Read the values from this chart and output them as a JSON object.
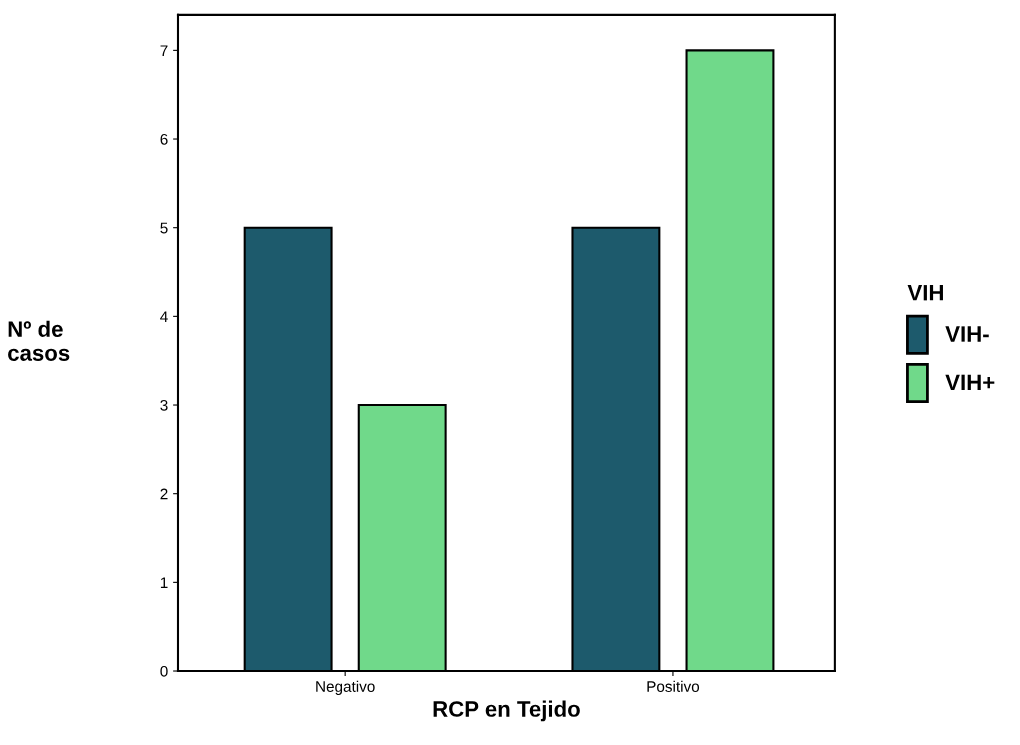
{
  "chart_data": {
    "type": "bar",
    "xlabel": "RCP en Tejido",
    "ylabel": "Nº de\ncasos",
    "legend_title": "VIH",
    "categories": [
      "Negativo",
      "Positivo"
    ],
    "series": [
      {
        "name": "VIH-",
        "color": "#1d5a6c",
        "values": [
          5,
          5
        ]
      },
      {
        "name": "VIH+",
        "color": "#70d98a",
        "values": [
          3,
          7
        ]
      }
    ],
    "ylim": [
      0,
      7.4
    ],
    "yticks": [
      0,
      1,
      2,
      3,
      4,
      5,
      6,
      7
    ],
    "grid": false,
    "legend": "right"
  }
}
